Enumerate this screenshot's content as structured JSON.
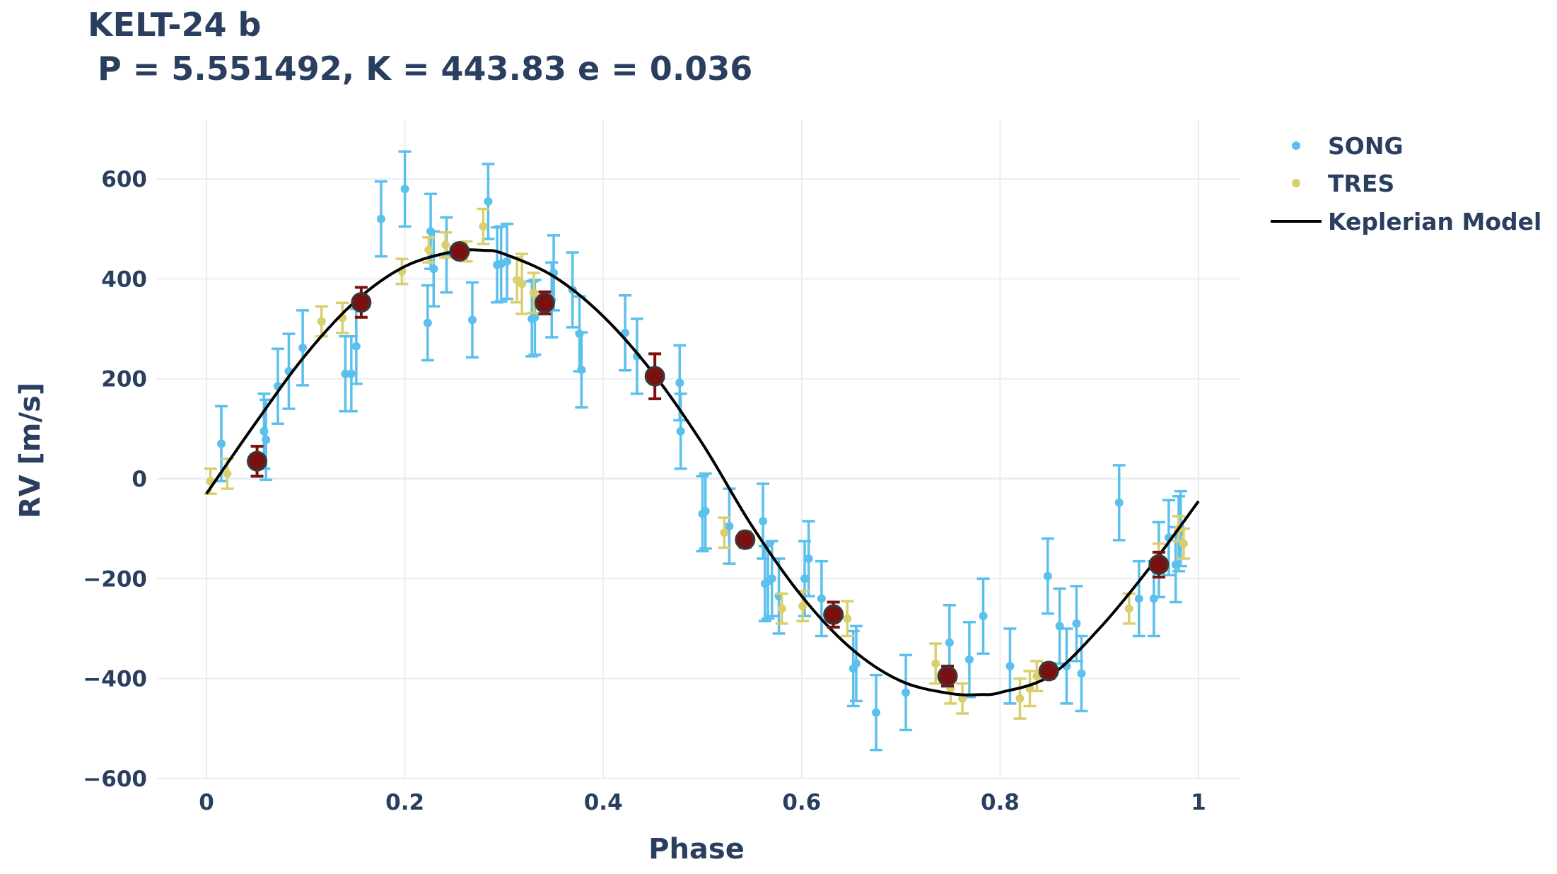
{
  "chart_data": {
    "type": "scatter",
    "title": "KELT-24 b",
    "subtitle": "P = 5.551492, K = 443.83 e = 0.036",
    "xlabel": "Phase",
    "ylabel": "RV [m/s]",
    "xlim": [
      -0.05,
      1.045
    ],
    "ylim": [
      -600,
      720
    ],
    "xticks": [
      "0",
      "0.2",
      "0.4",
      "0.6",
      "0.8",
      "1"
    ],
    "xtick_values": [
      0,
      0.2,
      0.4,
      0.6,
      0.8,
      1
    ],
    "yticks": [
      "600",
      "400",
      "200",
      "0",
      "−200",
      "−400",
      "−600"
    ],
    "ytick_values": [
      600,
      400,
      200,
      0,
      -200,
      -400,
      -600
    ],
    "grid": true,
    "legend_position": "top-right",
    "colors": {
      "SONG": "#5bc0eb",
      "TRES": "#d9cf6f",
      "binned": "#7a1010",
      "model": "#000000",
      "grid": "#e8edf3",
      "text": "#2a3f5f"
    },
    "series": [
      {
        "name": "SONG",
        "kind": "errorbar-points",
        "points": [
          [
            0.015,
            70,
            75
          ],
          [
            0.058,
            95,
            75
          ],
          [
            0.06,
            78,
            80
          ],
          [
            0.072,
            185,
            75
          ],
          [
            0.083,
            215,
            75
          ],
          [
            0.097,
            262,
            75
          ],
          [
            0.14,
            210,
            75
          ],
          [
            0.146,
            210,
            75
          ],
          [
            0.151,
            265,
            75
          ],
          [
            0.176,
            520,
            75
          ],
          [
            0.2,
            580,
            75
          ],
          [
            0.223,
            312,
            75
          ],
          [
            0.226,
            495,
            75
          ],
          [
            0.229,
            420,
            75
          ],
          [
            0.242,
            448,
            75
          ],
          [
            0.268,
            318,
            75
          ],
          [
            0.284,
            555,
            75
          ],
          [
            0.293,
            428,
            75
          ],
          [
            0.297,
            430,
            75
          ],
          [
            0.303,
            435,
            75
          ],
          [
            0.328,
            320,
            75
          ],
          [
            0.331,
            323,
            75
          ],
          [
            0.348,
            358,
            75
          ],
          [
            0.35,
            412,
            75
          ],
          [
            0.369,
            378,
            75
          ],
          [
            0.376,
            290,
            75
          ],
          [
            0.378,
            218,
            75
          ],
          [
            0.422,
            292,
            75
          ],
          [
            0.434,
            245,
            75
          ],
          [
            0.477,
            192,
            75
          ],
          [
            0.478,
            95,
            75
          ],
          [
            0.5,
            -70,
            75
          ],
          [
            0.503,
            -65,
            75
          ],
          [
            0.527,
            -95,
            75
          ],
          [
            0.561,
            -85,
            75
          ],
          [
            0.563,
            -210,
            75
          ],
          [
            0.566,
            -205,
            75
          ],
          [
            0.57,
            -200,
            75
          ],
          [
            0.577,
            -235,
            75
          ],
          [
            0.603,
            -200,
            75
          ],
          [
            0.607,
            -160,
            75
          ],
          [
            0.62,
            -240,
            75
          ],
          [
            0.652,
            -380,
            75
          ],
          [
            0.655,
            -370,
            75
          ],
          [
            0.675,
            -468,
            75
          ],
          [
            0.705,
            -428,
            75
          ],
          [
            0.749,
            -328,
            75
          ],
          [
            0.769,
            -362,
            75
          ],
          [
            0.783,
            -275,
            75
          ],
          [
            0.81,
            -375,
            75
          ],
          [
            0.848,
            -195,
            75
          ],
          [
            0.86,
            -295,
            75
          ],
          [
            0.867,
            -375,
            75
          ],
          [
            0.877,
            -290,
            75
          ],
          [
            0.882,
            -390,
            75
          ],
          [
            0.92,
            -48,
            75
          ],
          [
            0.94,
            -240,
            75
          ],
          [
            0.955,
            -240,
            75
          ],
          [
            0.96,
            -162,
            75
          ],
          [
            0.97,
            -118,
            75
          ],
          [
            0.977,
            -172,
            75
          ],
          [
            0.98,
            -110,
            75
          ],
          [
            0.982,
            -100,
            75
          ]
        ]
      },
      {
        "name": "TRES",
        "kind": "errorbar-points",
        "points": [
          [
            0.004,
            -5,
            25
          ],
          [
            0.021,
            10,
            30
          ],
          [
            0.116,
            315,
            30
          ],
          [
            0.137,
            322,
            30
          ],
          [
            0.197,
            415,
            25
          ],
          [
            0.224,
            458,
            25
          ],
          [
            0.241,
            468,
            25
          ],
          [
            0.262,
            455,
            20
          ],
          [
            0.279,
            505,
            35
          ],
          [
            0.313,
            398,
            45
          ],
          [
            0.318,
            390,
            60
          ],
          [
            0.33,
            372,
            40
          ],
          [
            0.522,
            -108,
            30
          ],
          [
            0.58,
            -260,
            30
          ],
          [
            0.601,
            -255,
            30
          ],
          [
            0.646,
            -280,
            35
          ],
          [
            0.735,
            -370,
            40
          ],
          [
            0.75,
            -420,
            30
          ],
          [
            0.762,
            -440,
            30
          ],
          [
            0.82,
            -440,
            40
          ],
          [
            0.83,
            -420,
            35
          ],
          [
            0.837,
            -395,
            30
          ],
          [
            0.93,
            -260,
            30
          ],
          [
            0.96,
            -155,
            25
          ],
          [
            0.98,
            -100,
            25
          ],
          [
            0.985,
            -130,
            30
          ]
        ]
      },
      {
        "name": "binned",
        "kind": "binned-points",
        "points": [
          [
            0.051,
            35,
            30
          ],
          [
            0.156,
            353,
            30
          ],
          [
            0.255,
            455,
            10
          ],
          [
            0.341,
            352,
            22
          ],
          [
            0.452,
            205,
            45
          ],
          [
            0.543,
            -122,
            15
          ],
          [
            0.632,
            -272,
            25
          ],
          [
            0.747,
            -395,
            20
          ],
          [
            0.849,
            -385,
            15
          ],
          [
            0.96,
            -172,
            25
          ]
        ]
      },
      {
        "name": "Keplerian Model",
        "kind": "model-line",
        "points": [
          [
            0.0,
            -30
          ],
          [
            0.05,
            113
          ],
          [
            0.1,
            248
          ],
          [
            0.15,
            355
          ],
          [
            0.2,
            425
          ],
          [
            0.25,
            455
          ],
          [
            0.28,
            457
          ],
          [
            0.3,
            450
          ],
          [
            0.35,
            405
          ],
          [
            0.4,
            325
          ],
          [
            0.45,
            212
          ],
          [
            0.5,
            70
          ],
          [
            0.55,
            -95
          ],
          [
            0.6,
            -235
          ],
          [
            0.65,
            -340
          ],
          [
            0.7,
            -405
          ],
          [
            0.75,
            -430
          ],
          [
            0.78,
            -432
          ],
          [
            0.8,
            -428
          ],
          [
            0.85,
            -395
          ],
          [
            0.9,
            -300
          ],
          [
            0.95,
            -180
          ],
          [
            1.0,
            -45
          ]
        ]
      }
    ],
    "legend": [
      "SONG",
      "TRES",
      "Keplerian Model"
    ]
  }
}
